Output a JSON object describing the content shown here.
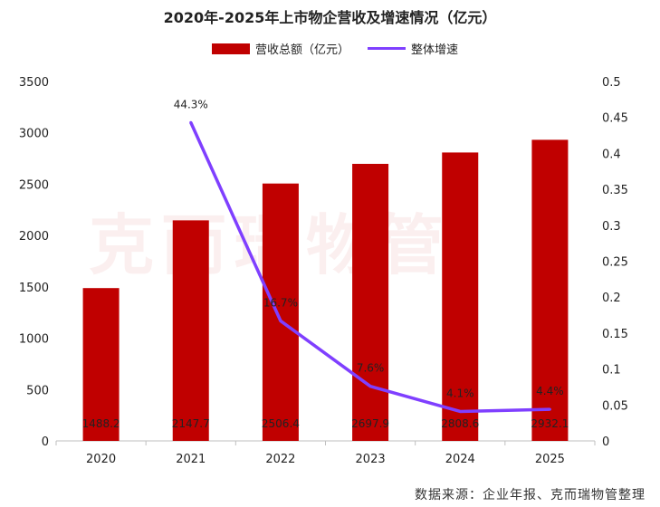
{
  "chart_data": {
    "type": "bar",
    "title": "2020年-2025年上市物企营收及增速情况（亿元）",
    "categories": [
      "2020",
      "2021",
      "2022",
      "2023",
      "2024",
      "2025"
    ],
    "series": [
      {
        "name": "营收总额（亿元）",
        "type": "bar",
        "axis": "left",
        "color": "#c00000",
        "values": [
          1488.2,
          2147.7,
          2506.4,
          2697.9,
          2808.6,
          2932.1
        ],
        "labels": [
          "1488.2",
          "2147.7",
          "2506.4",
          "2697.9",
          "2808.6",
          "2932.1"
        ]
      },
      {
        "name": "整体增速",
        "type": "line",
        "axis": "right",
        "color": "#7f3fff",
        "x": [
          "2021",
          "2022",
          "2023",
          "2024",
          "2025"
        ],
        "values": [
          0.443,
          0.167,
          0.076,
          0.041,
          0.044
        ],
        "labels": [
          "44.3%",
          "16.7%",
          "7.6%",
          "4.1%",
          "4.4%"
        ]
      }
    ],
    "y_left": {
      "lim": [
        0,
        3500
      ],
      "ticks": [
        "0",
        "500",
        "1000",
        "1500",
        "2000",
        "2500",
        "3000",
        "3500"
      ]
    },
    "y_right": {
      "lim": [
        0,
        0.5
      ],
      "ticks": [
        "0",
        "0.05",
        "0.1",
        "0.15",
        "0.2",
        "0.25",
        "0.3",
        "0.35",
        "0.4",
        "0.45",
        "0.5"
      ]
    },
    "grid": false,
    "legend": "top"
  },
  "watermark": "克而瑞物管",
  "source": "数据来源：企业年报、克而瑞物管整理"
}
